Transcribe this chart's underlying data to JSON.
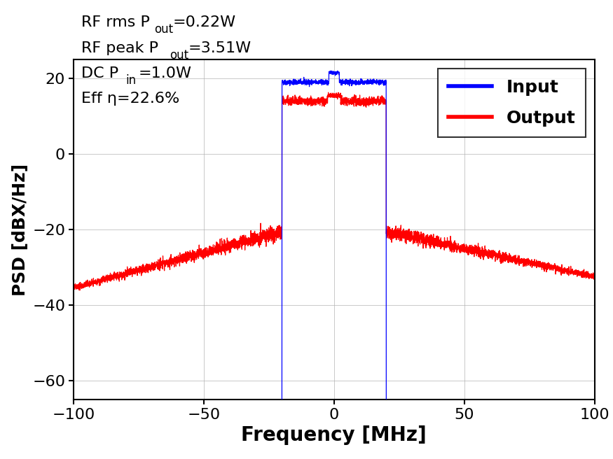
{
  "title": "",
  "xlabel": "Frequency [MHz]",
  "ylabel": "PSD [dBX/Hz]",
  "xlim": [
    -100,
    100
  ],
  "ylim": [
    -65,
    25
  ],
  "yticks": [
    20,
    0,
    -20,
    -40,
    -60
  ],
  "xticks": [
    -100,
    -50,
    0,
    50,
    100
  ],
  "input_color": "#0000FF",
  "output_color": "#FF0000",
  "background_color": "#FFFFFF",
  "grid_color": "#B0B0B0",
  "legend_labels": [
    "Input",
    "Output"
  ],
  "signal_bandwidth": 20,
  "input_passband_level": 19.0,
  "input_peak_level": 21.5,
  "input_noise_floor": -65,
  "output_passband_level": 14.0,
  "output_peak_level": 15.5,
  "output_noise_floor_far": -35.0,
  "output_noise_floor_near": -32.5,
  "acpr_peak_level": -20.0,
  "red_left_start": -100,
  "red_left_end": -20,
  "red_left_start_val": -35.5,
  "red_left_end_val": -20.5,
  "red_right_start": 20,
  "red_right_end": 100,
  "red_right_start_val": -20.5,
  "red_right_end_val": -32.5,
  "ann_line1_main": "RF rms P",
  "ann_line1_sub": "out",
  "ann_line1_val": "=0.22W",
  "ann_line2_main": "RF peak P",
  "ann_line2_sub": "out",
  "ann_line2_val": "=3.51W",
  "ann_line3_main": "DC P",
  "ann_line3_sub": "in",
  "ann_line3_val": "=1.0W",
  "ann_line4": "Eff η=22.6%",
  "ann_fontsize": 16,
  "ann_sub_fontsize": 12,
  "tick_fontsize": 16,
  "label_fontsize": 20,
  "legend_fontsize": 18
}
